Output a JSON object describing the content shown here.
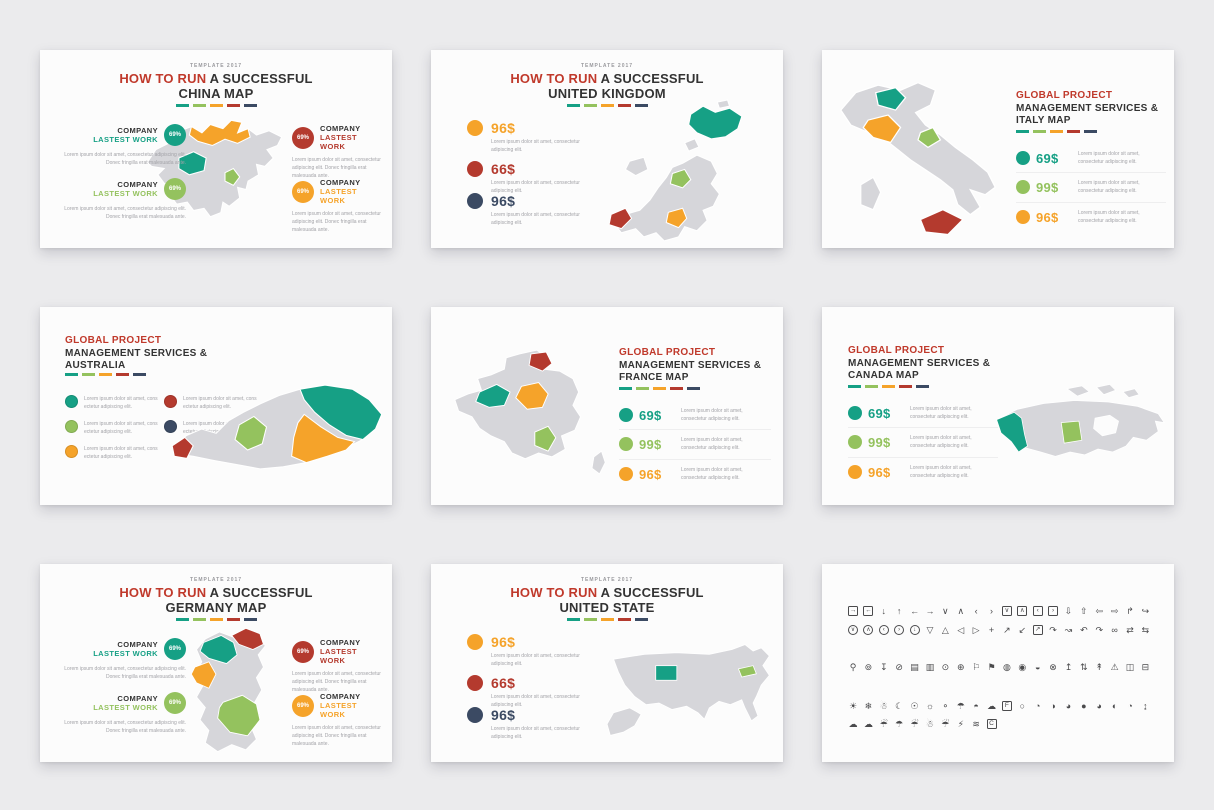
{
  "palette": {
    "page": "#ebebed",
    "slide": "#fcfcfc",
    "dark": "#333333",
    "title_red": "#c0392b",
    "teal": "#16a085",
    "green": "#94c25e",
    "orange": "#f5a32a",
    "red": "#b43a2e",
    "navy": "#3b4a63",
    "map": "#d6d6da"
  },
  "dash_colors": [
    "teal",
    "green",
    "orange",
    "red",
    "navy"
  ],
  "slides": [
    {
      "id": "china",
      "kicker": "TEMPLATE 2017",
      "title_red": "HOW TO RUN",
      "title_black": "A SUCCESSFUL",
      "title_line2": "CHINA MAP",
      "blocks": [
        {
          "title": "COMPANY",
          "subtitle": "LASTEST WORK",
          "pct": "69%",
          "color": "teal",
          "body": "Lorem ipsum dolor sit amet, consectetur adipiscing elit. Donec fringilla erat malesuada ante."
        },
        {
          "title": "COMPANY",
          "subtitle": "LASTEST WORK",
          "pct": "69%",
          "color": "green",
          "body": "Lorem ipsum dolor sit amet, consectetur adipiscing elit. Donec fringilla erat malesuada ante."
        },
        {
          "title": "COMPANY",
          "subtitle": "LASTEST WORK",
          "pct": "69%",
          "color": "red",
          "body": "Lorem ipsum dolor sit amet, consectetur adipiscing elit. Donec fringilla erat malesuada ante."
        },
        {
          "title": "COMPANY",
          "subtitle": "LASTEST WORK",
          "pct": "69%",
          "color": "orange",
          "body": "Lorem ipsum dolor sit amet, consectetur adipiscing elit. Donec fringilla erat malesuada ante."
        }
      ]
    },
    {
      "id": "united-kingdom",
      "kicker": "TEMPLATE 2017",
      "title_red": "HOW TO RUN",
      "title_black": "A SUCCESSFUL",
      "title_line2": "UNITED KINGDOM",
      "stats": [
        {
          "value": "96$",
          "color": "orange",
          "body": "Lorem ipsum dolor sit amet, consectetur adipiscing elit."
        },
        {
          "value": "66$",
          "color": "red",
          "body": "Lorem ipsum dolor sit amet, consectetur adipiscing elit."
        },
        {
          "value": "96$",
          "color": "navy",
          "body": "Lorem ipsum dolor sit amet, consectetur adipiscing elit."
        }
      ]
    },
    {
      "id": "italy",
      "heading_red": "GLOBAL PROJECT",
      "heading_line1": "MANAGEMENT SERVICES &",
      "heading_line2": "ITALY MAP",
      "stats": [
        {
          "value": "69$",
          "color": "teal",
          "body": "Lorem ipsum dolor sit amet, consectetur adipiscing elit."
        },
        {
          "value": "99$",
          "color": "green",
          "body": "Lorem ipsum dolor sit amet, consectetur adipiscing elit."
        },
        {
          "value": "96$",
          "color": "orange",
          "body": "Lorem ipsum dolor sit amet, consectetur adipiscing elit."
        }
      ]
    },
    {
      "id": "australia",
      "heading_red": "GLOBAL PROJECT",
      "heading_line1": "MANAGEMENT SERVICES &",
      "heading_line2": "AUSTRALIA",
      "bullets": [
        {
          "color": "teal",
          "body": "Lorem ipsum dolor sit amet, cons ectetur adipiscing elit."
        },
        {
          "color": "green",
          "body": "Lorem ipsum dolor sit amet, cons ectetur adipiscing elit."
        },
        {
          "color": "orange",
          "body": "Lorem ipsum dolor sit amet, cons ectetur adipiscing elit."
        },
        {
          "color": "red",
          "body": "Lorem ipsum dolor sit amet, cons ectetur adipiscing elit."
        },
        {
          "color": "navy",
          "body": "Lorem ipsum dolor sit amet, cons ectetur adipiscing elit."
        }
      ]
    },
    {
      "id": "france",
      "heading_red": "GLOBAL PROJECT",
      "heading_line1": "MANAGEMENT SERVICES &",
      "heading_line2": "FRANCE MAP",
      "stats": [
        {
          "value": "69$",
          "color": "teal",
          "body": "Lorem ipsum dolor sit amet, consectetur adipiscing elit."
        },
        {
          "value": "99$",
          "color": "green",
          "body": "Lorem ipsum dolor sit amet, consectetur adipiscing elit."
        },
        {
          "value": "96$",
          "color": "orange",
          "body": "Lorem ipsum dolor sit amet, consectetur adipiscing elit."
        }
      ]
    },
    {
      "id": "canada",
      "heading_red": "GLOBAL PROJECT",
      "heading_line1": "MANAGEMENT SERVICES &",
      "heading_line2": "CANADA MAP",
      "stats": [
        {
          "value": "69$",
          "color": "teal",
          "body": "Lorem ipsum dolor sit amet, consectetur adipiscing elit."
        },
        {
          "value": "99$",
          "color": "green",
          "body": "Lorem ipsum dolor sit amet, consectetur adipiscing elit."
        },
        {
          "value": "96$",
          "color": "orange",
          "body": "Lorem ipsum dolor sit amet, consectetur adipiscing elit."
        }
      ]
    },
    {
      "id": "germany",
      "kicker": "TEMPLATE 2017",
      "title_red": "HOW TO RUN",
      "title_black": "A SUCCESSFUL",
      "title_line2": "GERMANY MAP",
      "blocks": [
        {
          "title": "COMPANY",
          "subtitle": "LASTEST WORK",
          "pct": "69%",
          "color": "teal",
          "body": "Lorem ipsum dolor sit amet, consectetur adipiscing elit. Donec fringilla erat malesuada ante."
        },
        {
          "title": "COMPANY",
          "subtitle": "LASTEST WORK",
          "pct": "69%",
          "color": "green",
          "body": "Lorem ipsum dolor sit amet, consectetur adipiscing elit. Donec fringilla erat malesuada ante."
        },
        {
          "title": "COMPANY",
          "subtitle": "LASTEST WORK",
          "pct": "69%",
          "color": "red",
          "body": "Lorem ipsum dolor sit amet, consectetur adipiscing elit. Donec fringilla erat malesuada ante."
        },
        {
          "title": "COMPANY",
          "subtitle": "LASTEST WORK",
          "pct": "69%",
          "color": "orange",
          "body": "Lorem ipsum dolor sit amet, consectetur adipiscing elit. Donec fringilla erat malesuada ante."
        }
      ]
    },
    {
      "id": "united-state",
      "kicker": "TEMPLATE 2017",
      "title_red": "HOW TO RUN",
      "title_black": "A SUCCESSFUL",
      "title_line2": "UNITED STATE",
      "stats": [
        {
          "value": "96$",
          "color": "orange",
          "body": "Lorem ipsum dolor sit amet, consectetur adipiscing elit."
        },
        {
          "value": "66$",
          "color": "red",
          "body": "Lorem ipsum dolor sit amet, consectetur adipiscing elit."
        },
        {
          "value": "96$",
          "color": "navy",
          "body": "Lorem ipsum dolor sit amet, consectetur adipiscing elit."
        }
      ]
    },
    {
      "id": "icons",
      "rows": [
        [
          {
            "n": "arrow-right-box",
            "g": "→",
            "s": "box"
          },
          {
            "n": "arrow-left-box",
            "g": "←",
            "s": "box"
          },
          {
            "n": "arrow-down",
            "g": "↓"
          },
          {
            "n": "arrow-up",
            "g": "↑"
          },
          {
            "n": "arrow-left",
            "g": "←"
          },
          {
            "n": "arrow-right",
            "g": "→"
          },
          {
            "n": "chevron-down",
            "g": "∨"
          },
          {
            "n": "chevron-up",
            "g": "∧"
          },
          {
            "n": "chevron-left",
            "g": "‹"
          },
          {
            "n": "chevron-right",
            "g": "›"
          },
          {
            "n": "chevron-down-box",
            "g": "∨",
            "s": "box"
          },
          {
            "n": "chevron-up-box",
            "g": "∧",
            "s": "box"
          },
          {
            "n": "chevron-left-box",
            "g": "‹",
            "s": "box"
          },
          {
            "n": "chevron-right-box",
            "g": "›",
            "s": "box"
          },
          {
            "n": "arrow-down-bold",
            "g": "⇩"
          },
          {
            "n": "arrow-up-bold",
            "g": "⇧"
          },
          {
            "n": "arrow-left-bold",
            "g": "⇦"
          },
          {
            "n": "arrow-right-bold",
            "g": "⇨"
          },
          {
            "n": "arrow-turn-up-right",
            "g": "↱"
          },
          {
            "n": "arrow-hook-right",
            "g": "↪"
          }
        ],
        [
          {
            "n": "chevron-down-circle",
            "g": "∨",
            "s": "circle"
          },
          {
            "n": "chevron-up-circle",
            "g": "∧",
            "s": "circle"
          },
          {
            "n": "chevron-left-circle",
            "g": "‹",
            "s": "circle"
          },
          {
            "n": "chevron-right-circle",
            "g": "›",
            "s": "circle"
          },
          {
            "n": "arrow-down-circle",
            "g": "↓",
            "s": "circle"
          },
          {
            "n": "triangle-down",
            "g": "▽"
          },
          {
            "n": "triangle-up",
            "g": "△"
          },
          {
            "n": "triangle-left",
            "g": "◁"
          },
          {
            "n": "triangle-right",
            "g": "▷"
          },
          {
            "n": "move-arrows",
            "g": "+"
          },
          {
            "n": "expand-diagonal",
            "g": "↗"
          },
          {
            "n": "collapse-diagonal",
            "g": "↙"
          },
          {
            "n": "external-link-box",
            "g": "↗",
            "s": "box"
          },
          {
            "n": "arrow-curve-right",
            "g": "↷"
          },
          {
            "n": "arrow-swoosh-right",
            "g": "↝"
          },
          {
            "n": "undo-arrow",
            "g": "↶"
          },
          {
            "n": "redo-arrow",
            "g": "↷"
          },
          {
            "n": "link-loop",
            "g": "∞"
          },
          {
            "n": "shuffle-arrows",
            "g": "⇄"
          },
          {
            "n": "split-arrows",
            "g": "⇆"
          }
        ],
        [
          {
            "n": "map-pin",
            "g": "⚲"
          },
          {
            "n": "map-pin-check",
            "g": "⊚"
          },
          {
            "n": "push-pin",
            "g": "↧"
          },
          {
            "n": "compass",
            "g": "⊘"
          },
          {
            "n": "folded-map",
            "g": "▤"
          },
          {
            "n": "map-booklet",
            "g": "▥"
          },
          {
            "n": "location-target",
            "g": "⊙"
          },
          {
            "n": "globe-grid",
            "g": "⊕"
          },
          {
            "n": "flag-outline",
            "g": "⚐"
          },
          {
            "n": "flag-pole",
            "g": "⚑"
          },
          {
            "n": "globe",
            "g": "◍"
          },
          {
            "n": "globe-dark",
            "g": "◉"
          },
          {
            "n": "globe-land",
            "g": "◒"
          },
          {
            "n": "crosshair-x",
            "g": "⊗"
          },
          {
            "n": "pin-signal",
            "g": "↥"
          },
          {
            "n": "arrows-updown-circle",
            "g": "⇅"
          },
          {
            "n": "signal-tower",
            "g": "↟"
          },
          {
            "n": "warning-triangle",
            "g": "⚠"
          },
          {
            "n": "bus-front",
            "g": "◫"
          },
          {
            "n": "bus-side",
            "g": "⊟"
          }
        ],
        [
          {
            "n": "sun",
            "g": "☀"
          },
          {
            "n": "snowflake",
            "g": "❄"
          },
          {
            "n": "snow-ground",
            "g": "☃"
          },
          {
            "n": "moon-stars",
            "g": "☾"
          },
          {
            "n": "sun-face",
            "g": "☉"
          },
          {
            "n": "sunset",
            "g": "☼"
          },
          {
            "n": "droplet",
            "g": "⚬"
          },
          {
            "n": "umbrella",
            "g": "☂"
          },
          {
            "n": "sunrise",
            "g": "◓"
          },
          {
            "n": "cloud",
            "g": "☁"
          },
          {
            "n": "fahrenheit",
            "g": "F",
            "s": "box"
          },
          {
            "n": "moon-new",
            "g": "○"
          },
          {
            "n": "moon-waxing-crescent",
            "g": "◔"
          },
          {
            "n": "moon-first-quarter",
            "g": "◑"
          },
          {
            "n": "moon-waxing-gibbous",
            "g": "◕"
          },
          {
            "n": "moon-full",
            "g": "●"
          },
          {
            "n": "moon-waning-gibbous",
            "g": "◕"
          },
          {
            "n": "moon-last-quarter",
            "g": "◐"
          },
          {
            "n": "moon-waning-crescent",
            "g": "◔"
          },
          {
            "n": "thermometer",
            "g": "↨"
          }
        ],
        [
          {
            "n": "cloud",
            "g": "☁"
          },
          {
            "n": "clouds",
            "g": "☁"
          },
          {
            "n": "cloud-drizzle",
            "g": "☔"
          },
          {
            "n": "cloud-hail",
            "g": "☂"
          },
          {
            "n": "cloud-rain",
            "g": "☔"
          },
          {
            "n": "cloud-snow",
            "g": "☃"
          },
          {
            "n": "cloud-showers",
            "g": "☔"
          },
          {
            "n": "cloud-lightning",
            "g": "⚡"
          },
          {
            "n": "wind",
            "g": "≋"
          },
          {
            "n": "celsius",
            "g": "C",
            "s": "box"
          }
        ]
      ]
    }
  ]
}
